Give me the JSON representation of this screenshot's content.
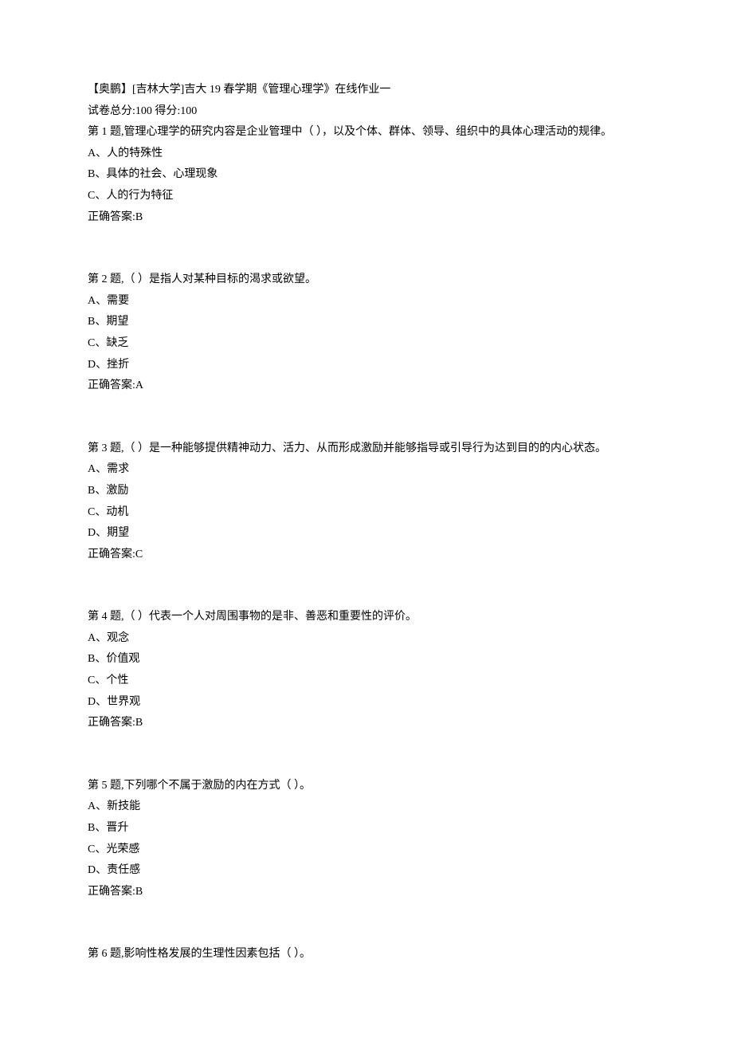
{
  "header": {
    "title": "【奥鹏】[吉林大学]吉大 19 春学期《管理心理学》在线作业一",
    "scoreLine": "试卷总分:100    得分:100"
  },
  "questions": [
    {
      "prompt": "第 1 题,管理心理学的研究内容是企业管理中（   ），以及个体、群体、领导、组织中的具体心理活动的规律。",
      "options": [
        "A、人的特殊性",
        "B、具体的社会、心理现象",
        "C、人的行为特征"
      ],
      "answer": "正确答案:B"
    },
    {
      "prompt": "第 2 题,（   ）是指人对某种目标的渴求或欲望。",
      "options": [
        "A、需要",
        "B、期望",
        "C、缺乏",
        "D、挫折"
      ],
      "answer": "正确答案:A"
    },
    {
      "prompt": "第 3 题,（   ）是一种能够提供精神动力、活力、从而形成激励并能够指导或引导行为达到目的的内心状态。",
      "options": [
        "A、需求",
        "B、激励",
        "C、动机",
        "D、期望"
      ],
      "answer": "正确答案:C"
    },
    {
      "prompt": "第 4 题,（  ）代表一个人对周围事物的是非、善恶和重要性的评价。",
      "options": [
        "A、观念",
        "B、价值观",
        "C、个性",
        "D、世界观"
      ],
      "answer": "正确答案:B"
    },
    {
      "prompt": "第 5 题,下列哪个不属于激励的内在方式（   ）。",
      "options": [
        "A、新技能",
        "B、晋升",
        "C、光荣感",
        "D、责任感"
      ],
      "answer": "正确答案:B"
    },
    {
      "prompt": "第 6 题,影响性格发展的生理性因素包括（   ）。",
      "options": [],
      "answer": ""
    }
  ]
}
